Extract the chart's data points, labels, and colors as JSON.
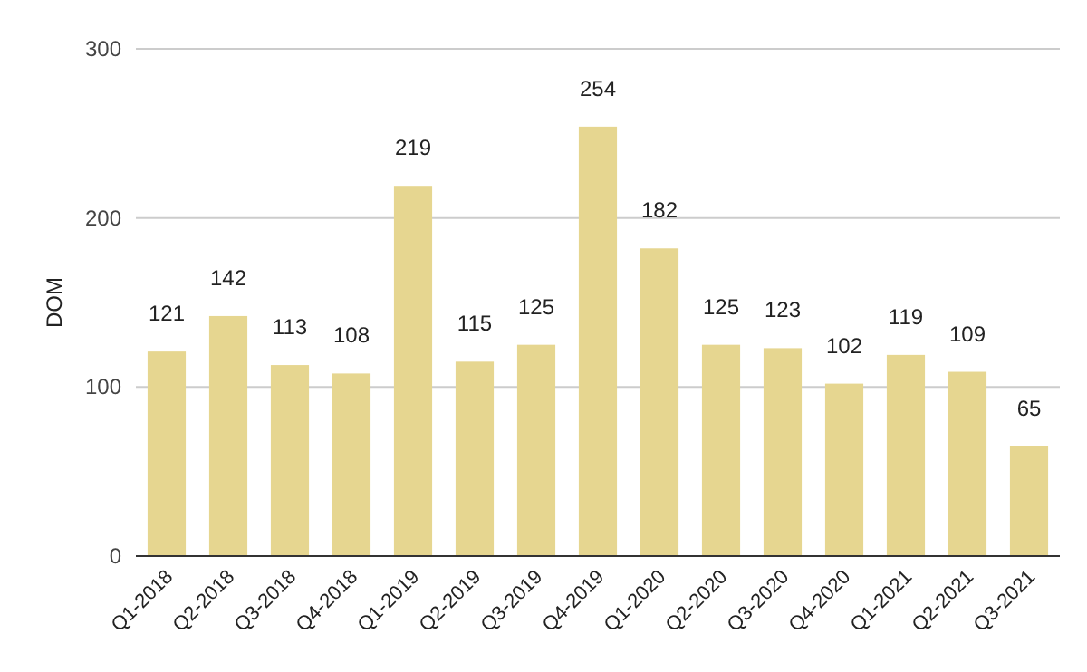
{
  "chart_data": {
    "type": "bar",
    "ylabel": "DOM",
    "categories": [
      "Q1-2018",
      "Q2-2018",
      "Q3-2018",
      "Q4-2018",
      "Q1-2019",
      "Q2-2019",
      "Q3-2019",
      "Q4-2019",
      "Q1-2020",
      "Q2-2020",
      "Q3-2020",
      "Q4-2020",
      "Q1-2021",
      "Q2-2021",
      "Q3-2021"
    ],
    "values": [
      121,
      142,
      113,
      108,
      219,
      115,
      125,
      254,
      182,
      125,
      123,
      102,
      119,
      109,
      65
    ],
    "color": "#e6d690",
    "ylim": [
      0,
      300
    ],
    "yticks": [
      0,
      100,
      200,
      300
    ],
    "grid": "y",
    "data_labels": true
  }
}
